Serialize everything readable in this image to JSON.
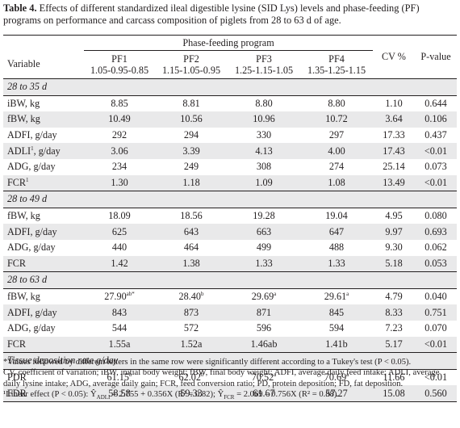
{
  "caption": {
    "label": "Table 4.",
    "text": " Effects of different standardized ileal digestible lysine (SID Lys) levels and phase-feeding (PF) programs on performance and carcass composition of piglets from 28 to 63 d of age."
  },
  "header": {
    "variable": "Variable",
    "group": "Phase-feeding program",
    "cv": "CV %",
    "pvalue": "P-value",
    "programs": [
      {
        "name": "PF1",
        "levels": "1.05-0.95-0.85"
      },
      {
        "name": "PF2",
        "levels": "1.15-1.05-0.95"
      },
      {
        "name": "PF3",
        "levels": "1.25-1.15-1.05"
      },
      {
        "name": "PF4",
        "levels": "1.35-1.25-1.15"
      }
    ]
  },
  "sections": [
    {
      "title": "28 to 35 d",
      "rows": [
        {
          "variable": "iBW, kg",
          "sup": "",
          "v": [
            "8.85",
            "8.81",
            "8.80",
            "8.80"
          ],
          "s": [
            "",
            "",
            "",
            ""
          ],
          "cv": "1.10",
          "p": "0.644"
        },
        {
          "variable": "fBW, kg",
          "sup": "",
          "v": [
            "10.49",
            "10.56",
            "10.96",
            "10.72"
          ],
          "s": [
            "",
            "",
            "",
            ""
          ],
          "cv": "3.64",
          "p": "0.106"
        },
        {
          "variable": "ADFI, g/day",
          "sup": "",
          "v": [
            "292",
            "294",
            "330",
            "297"
          ],
          "s": [
            "",
            "",
            "",
            ""
          ],
          "cv": "17.33",
          "p": "0.437"
        },
        {
          "variable": "ADLI",
          "sup": "1",
          "suffix": ", g/day",
          "v": [
            "3.06",
            "3.39",
            "4.13",
            "4.00"
          ],
          "s": [
            "",
            "",
            "",
            ""
          ],
          "cv": "17.43",
          "p": "<0.01"
        },
        {
          "variable": "ADG, g/day",
          "sup": "",
          "v": [
            "234",
            "249",
            "308",
            "274"
          ],
          "s": [
            "",
            "",
            "",
            ""
          ],
          "cv": "25.14",
          "p": "0.073"
        },
        {
          "variable": "FCR",
          "sup": "1",
          "v": [
            "1.30",
            "1.18",
            "1.09",
            "1.08"
          ],
          "s": [
            "",
            "",
            "",
            ""
          ],
          "cv": "13.49",
          "p": "<0.01"
        }
      ]
    },
    {
      "title": "28 to 49 d",
      "rows": [
        {
          "variable": "fBW, kg",
          "sup": "",
          "v": [
            "18.09",
            "18.56",
            "19.28",
            "19.04"
          ],
          "s": [
            "",
            "",
            "",
            ""
          ],
          "cv": "4.95",
          "p": "0.080"
        },
        {
          "variable": "ADFI, g/day",
          "sup": "",
          "v": [
            "625",
            "643",
            "663",
            "647"
          ],
          "s": [
            "",
            "",
            "",
            ""
          ],
          "cv": "9.97",
          "p": "0.693"
        },
        {
          "variable": "ADG, g/day",
          "sup": "",
          "v": [
            "440",
            "464",
            "499",
            "488"
          ],
          "s": [
            "",
            "",
            "",
            ""
          ],
          "cv": "9.30",
          "p": "0.062"
        },
        {
          "variable": "FCR",
          "sup": "",
          "v": [
            "1.42",
            "1.38",
            "1.33",
            "1.33"
          ],
          "s": [
            "",
            "",
            "",
            ""
          ],
          "cv": "5.18",
          "p": "0.053"
        }
      ]
    },
    {
      "title": "28 to 63 d",
      "rows": [
        {
          "variable": "fBW, kg",
          "sup": "",
          "v": [
            "27.90",
            "28.40",
            "29.69",
            "29.61"
          ],
          "s": [
            "ab*",
            "b",
            "a",
            "a"
          ],
          "cv": "4.79",
          "p": "0.040"
        },
        {
          "variable": "ADFI, g/day",
          "sup": "",
          "v": [
            "843",
            "873",
            "871",
            "845"
          ],
          "s": [
            "",
            "",
            "",
            ""
          ],
          "cv": "8.33",
          "p": "0.751"
        },
        {
          "variable": "ADG, g/day",
          "sup": "",
          "v": [
            "544",
            "572",
            "596",
            "594"
          ],
          "s": [
            "",
            "",
            "",
            ""
          ],
          "cv": "7.23",
          "p": "0.070"
        },
        {
          "variable": "FCR",
          "sup": "",
          "v": [
            "1.55a",
            "1.52a",
            "1.46ab",
            "1.41b"
          ],
          "s": [
            "",
            "",
            "",
            ""
          ],
          "cv": "5.17",
          "p": "<0.01"
        }
      ]
    },
    {
      "title": "Tissue deposition rate g/day",
      "rows": [
        {
          "variable": "PDR",
          "sup": "",
          "v": [
            "61.15",
            "62.02",
            "70.52",
            "70.69"
          ],
          "s": [
            "b",
            "b",
            "a",
            "a"
          ],
          "cv": "11.66",
          "p": "<0.01"
        },
        {
          "variable": "FDR",
          "sup": "",
          "v": [
            "58.58",
            "59.33",
            "61.67",
            "57.27"
          ],
          "s": [
            "",
            "",
            "",
            ""
          ],
          "cv": "15.08",
          "p": "0.560"
        }
      ]
    }
  ],
  "footnotes": [
    "*Values followed by different letters in the same row were significantly different according to a Tukey's test (P < 0.05).",
    "CV, coefficient of variation; iBW, initial body weight; fBW, final body weight; ADFI, average daily feed intake; ADLI, average",
    "daily lysine intake; ADG, average daily gain; FCR, feed conversion ratio; PD, protein deposition; FD, fat deposition.",
    "¹Linear effect (P < 0.05): Ŷ",
    "ADLI",
    " = 2.755 + 0.356X (R² = 0.82); Ŷ",
    "FCR",
    " = 2.069 – 0.756X (R² = 0.88)."
  ],
  "colors": {
    "text": "#231f20",
    "shade": "#e9e9ea"
  }
}
